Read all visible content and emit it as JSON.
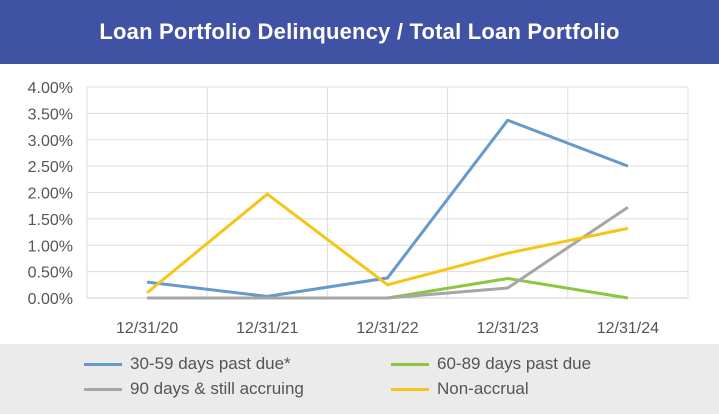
{
  "chart_data": {
    "type": "line",
    "title": "Loan Portfolio Delinquency / Total Loan Portfolio",
    "categories": [
      "12/31/20",
      "12/31/21",
      "12/31/22",
      "12/31/23",
      "12/31/24"
    ],
    "y_ticks": [
      "0.00%",
      "0.50%",
      "1.00%",
      "1.50%",
      "2.00%",
      "2.50%",
      "3.00%",
      "3.50%",
      "4.00%"
    ],
    "ylim": [
      0,
      4.0
    ],
    "grid": true,
    "legend_position": "bottom",
    "series": [
      {
        "name": "30-59 days past due*",
        "color": "#6699cc",
        "values": [
          0.3,
          0.03,
          0.38,
          3.37,
          2.5
        ]
      },
      {
        "name": "60-89 days past due",
        "color": "#8dc63f",
        "values": [
          0.0,
          0.0,
          0.0,
          0.37,
          0.0
        ]
      },
      {
        "name": "90 days & still accruing",
        "color": "#a6a6a6",
        "values": [
          0.0,
          0.0,
          0.0,
          0.19,
          1.72
        ]
      },
      {
        "name": "Non-accrual",
        "color": "#f5c518",
        "values": [
          0.1,
          1.97,
          0.25,
          0.85,
          1.32
        ]
      }
    ]
  }
}
